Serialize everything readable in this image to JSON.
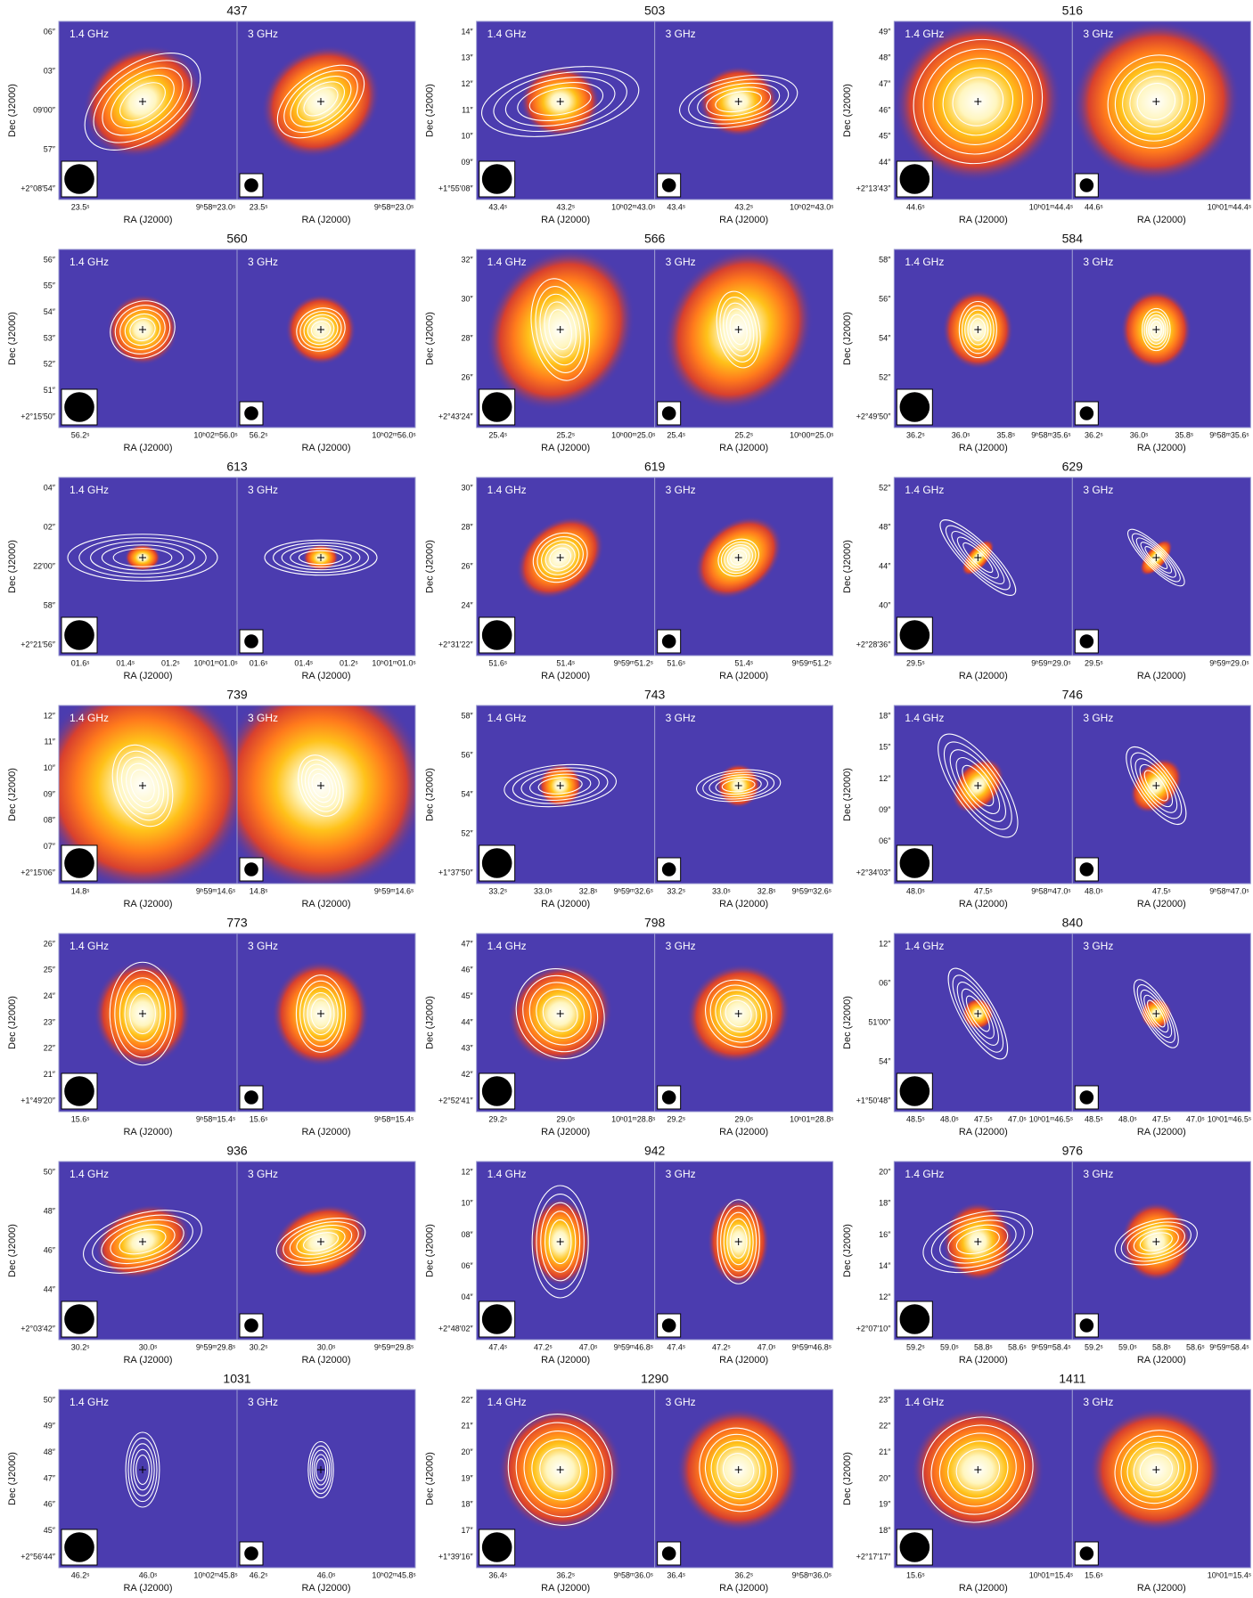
{
  "bands": [
    "1.4 GHz",
    "3 GHz"
  ],
  "x_label": "RA (J2000)",
  "y_label": "Dec (J2000)",
  "panels": [
    {
      "id": "437",
      "dec_ticks": [
        "06″",
        "03″",
        "09′00″",
        "57″",
        "+2°08′54″"
      ],
      "ra_ticks": [
        "23.5ˢ",
        "9ʰ58ᵐ23.0ˢ"
      ]
    },
    {
      "id": "503",
      "dec_ticks": [
        "14″",
        "13″",
        "12″",
        "11″",
        "10″",
        "09″",
        "+1°55′08″"
      ],
      "ra_ticks": [
        "43.4ˢ",
        "43.2ˢ",
        "10ʰ02ᵐ43.0ˢ"
      ]
    },
    {
      "id": "516",
      "dec_ticks": [
        "49″",
        "48″",
        "47″",
        "46″",
        "45″",
        "44″",
        "+2°13′43″"
      ],
      "ra_ticks": [
        "44.6ˢ",
        "10ʰ01ᵐ44.4ˢ"
      ]
    },
    {
      "id": "560",
      "dec_ticks": [
        "56″",
        "55″",
        "54″",
        "53″",
        "52″",
        "51″",
        "+2°15′50″"
      ],
      "ra_ticks": [
        "56.2ˢ",
        "10ʰ02ᵐ56.0ˢ"
      ]
    },
    {
      "id": "566",
      "dec_ticks": [
        "32″",
        "30″",
        "28″",
        "26″",
        "+2°43′24″"
      ],
      "ra_ticks": [
        "25.4ˢ",
        "25.2ˢ",
        "10ʰ00ᵐ25.0ˢ"
      ]
    },
    {
      "id": "584",
      "dec_ticks": [
        "58″",
        "56″",
        "54″",
        "52″",
        "+2°49′50″"
      ],
      "ra_ticks": [
        "36.2ˢ",
        "36.0ˢ",
        "35.8ˢ",
        "9ʰ58ᵐ35.6ˢ"
      ]
    },
    {
      "id": "613",
      "dec_ticks": [
        "04″",
        "02″",
        "22′00″",
        "58″",
        "+2°21′56″"
      ],
      "ra_ticks": [
        "01.6ˢ",
        "01.4ˢ",
        "01.2ˢ",
        "10ʰ01ᵐ01.0ˢ"
      ]
    },
    {
      "id": "619",
      "dec_ticks": [
        "30″",
        "28″",
        "26″",
        "24″",
        "+2°31′22″"
      ],
      "ra_ticks": [
        "51.6ˢ",
        "51.4ˢ",
        "9ʰ59ᵐ51.2ˢ"
      ]
    },
    {
      "id": "629",
      "dec_ticks": [
        "52″",
        "48″",
        "44″",
        "40″",
        "+2°28′36″"
      ],
      "ra_ticks": [
        "29.5ˢ",
        "9ʰ59ᵐ29.0ˢ"
      ]
    },
    {
      "id": "739",
      "dec_ticks": [
        "12″",
        "11″",
        "10″",
        "09″",
        "08″",
        "07″",
        "+2°15′06″"
      ],
      "ra_ticks": [
        "14.8ˢ",
        "9ʰ59ᵐ14.6ˢ"
      ]
    },
    {
      "id": "743",
      "dec_ticks": [
        "58″",
        "56″",
        "54″",
        "52″",
        "+1°37′50″"
      ],
      "ra_ticks": [
        "33.2ˢ",
        "33.0ˢ",
        "32.8ˢ",
        "9ʰ59ᵐ32.6ˢ"
      ]
    },
    {
      "id": "746",
      "dec_ticks": [
        "18″",
        "15″",
        "12″",
        "09″",
        "06″",
        "+2°34′03″"
      ],
      "ra_ticks": [
        "48.0ˢ",
        "47.5ˢ",
        "9ʰ58ᵐ47.0ˢ"
      ]
    },
    {
      "id": "773",
      "dec_ticks": [
        "26″",
        "25″",
        "24″",
        "23″",
        "22″",
        "21″",
        "+1°49′20″"
      ],
      "ra_ticks": [
        "15.6ˢ",
        "9ʰ58ᵐ15.4ˢ"
      ]
    },
    {
      "id": "798",
      "dec_ticks": [
        "47″",
        "46″",
        "45″",
        "44″",
        "43″",
        "42″",
        "+2°52′41″"
      ],
      "ra_ticks": [
        "29.2ˢ",
        "29.0ˢ",
        "10ʰ01ᵐ28.8ˢ"
      ]
    },
    {
      "id": "840",
      "dec_ticks": [
        "12″",
        "06″",
        "51′00″",
        "54″",
        "+1°50′48″"
      ],
      "ra_ticks": [
        "48.5ˢ",
        "48.0ˢ",
        "47.5ˢ",
        "47.0ˢ",
        "10ʰ01ᵐ46.5ˢ"
      ]
    },
    {
      "id": "936",
      "dec_ticks": [
        "50″",
        "48″",
        "46″",
        "44″",
        "+2°03′42″"
      ],
      "ra_ticks": [
        "30.2ˢ",
        "30.0ˢ",
        "9ʰ59ᵐ29.8ˢ"
      ]
    },
    {
      "id": "942",
      "dec_ticks": [
        "12″",
        "10″",
        "08″",
        "06″",
        "04″",
        "+2°48′02″"
      ],
      "ra_ticks": [
        "47.4ˢ",
        "47.2ˢ",
        "47.0ˢ",
        "9ʰ59ᵐ46.8ˢ"
      ]
    },
    {
      "id": "976",
      "dec_ticks": [
        "20″",
        "18″",
        "16″",
        "14″",
        "12″",
        "+2°07′10″"
      ],
      "ra_ticks": [
        "59.2ˢ",
        "59.0ˢ",
        "58.8ˢ",
        "58.6ˢ",
        "9ʰ59ᵐ58.4ˢ"
      ]
    },
    {
      "id": "1031",
      "dec_ticks": [
        "50″",
        "49″",
        "48″",
        "47″",
        "46″",
        "45″",
        "+2°56′44″"
      ],
      "ra_ticks": [
        "46.2ˢ",
        "46.0ˢ",
        "10ʰ02ᵐ45.8ˢ"
      ]
    },
    {
      "id": "1290",
      "dec_ticks": [
        "22″",
        "21″",
        "20″",
        "19″",
        "18″",
        "17″",
        "+1°39′16″"
      ],
      "ra_ticks": [
        "36.4ˢ",
        "36.2ˢ",
        "9ʰ58ᵐ36.0ˢ"
      ]
    },
    {
      "id": "1411",
      "dec_ticks": [
        "23″",
        "22″",
        "21″",
        "20″",
        "19″",
        "18″",
        "+2°17′17″"
      ],
      "ra_ticks": [
        "15.6ˢ",
        "10ʰ01ᵐ15.4ˢ"
      ]
    }
  ]
}
